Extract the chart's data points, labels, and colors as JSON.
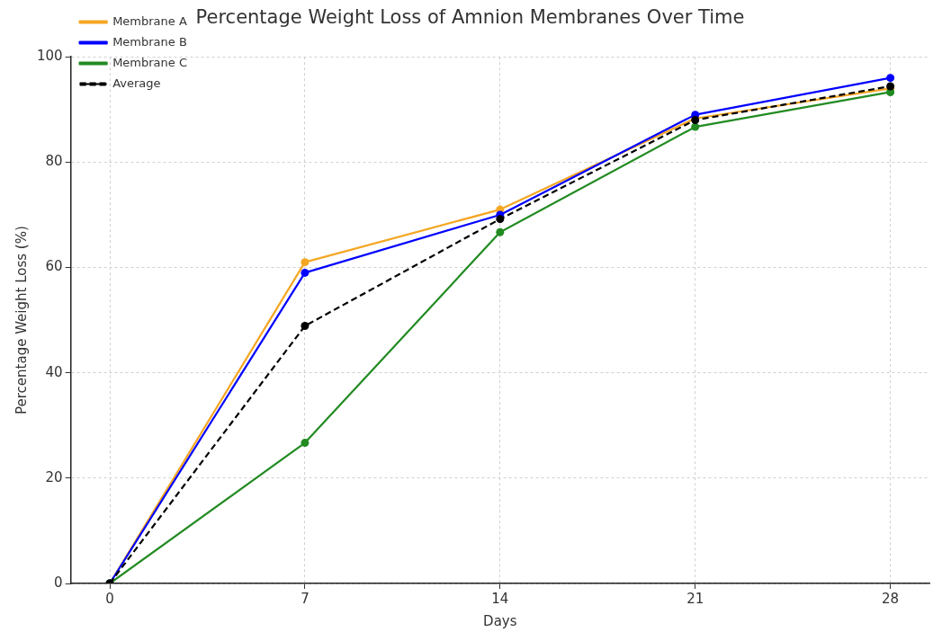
{
  "chart_data": {
    "type": "line",
    "title": "Percentage Weight Loss of Amnion Membranes Over Time",
    "xlabel": "Days",
    "ylabel": "Percentage Weight Loss (%)",
    "x": [
      0,
      7,
      14,
      21,
      28
    ],
    "series": [
      {
        "name": "Membrane A",
        "color": "#f5a623",
        "values": [
          0,
          61,
          71,
          88.3,
          94
        ]
      },
      {
        "name": "Membrane B",
        "color": "#0000ff",
        "values": [
          0,
          59,
          70,
          89,
          96
        ]
      },
      {
        "name": "Membrane C",
        "color": "#228b22",
        "values": [
          0,
          26.7,
          66.7,
          86.7,
          93.3
        ]
      },
      {
        "name": "Average",
        "color": "#000000",
        "values": [
          0,
          48.9,
          69.2,
          88,
          94.4
        ],
        "line_style": "dashed"
      }
    ],
    "xlim": [
      -1.4,
      29.4
    ],
    "xticks": [
      0,
      7,
      14,
      21,
      28
    ],
    "ylim": [
      0,
      100
    ],
    "yticks": [
      0,
      20,
      40,
      60,
      80,
      100
    ],
    "grid": true,
    "legend": "top left",
    "marker": "circle",
    "line_style": "solid"
  }
}
